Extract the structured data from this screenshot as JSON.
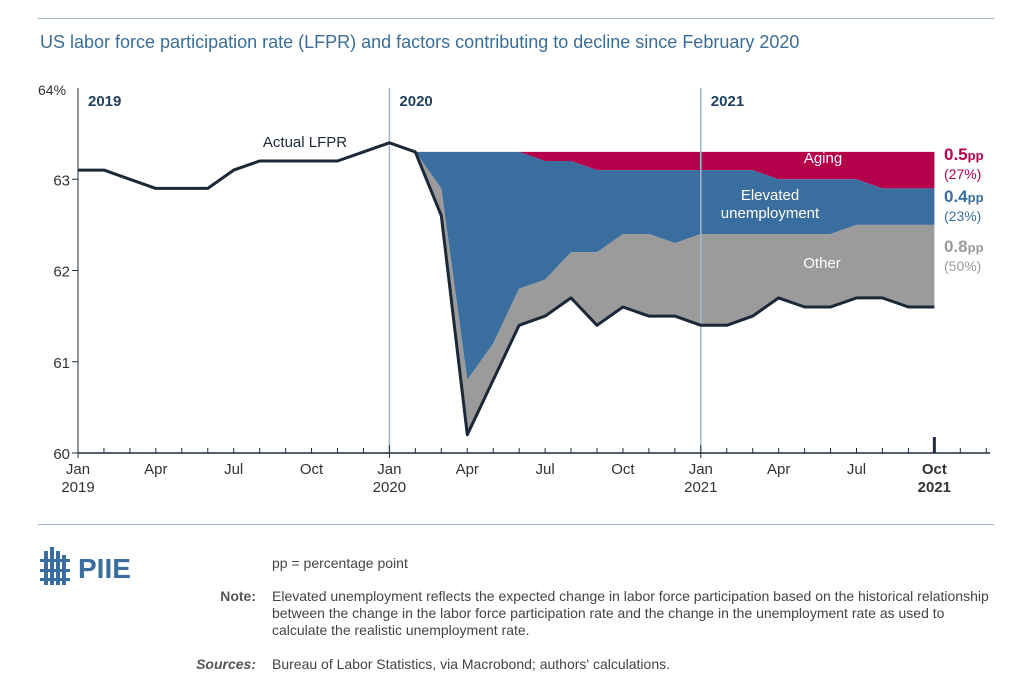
{
  "title": "US labor force participation rate (LFPR) and factors contributing to decline since February 2020",
  "chart_data": {
    "type": "area",
    "y_ticks": [
      60,
      61,
      62,
      63,
      64
    ],
    "y_top_label": "64%",
    "ylim": [
      60,
      64
    ],
    "x_tick_labels": [
      {
        "line1": "Jan",
        "line2": "2019",
        "i": 0,
        "bold": false
      },
      {
        "line1": "Apr",
        "line2": "",
        "i": 3,
        "bold": false
      },
      {
        "line1": "Jul",
        "line2": "",
        "i": 6,
        "bold": false
      },
      {
        "line1": "Oct",
        "line2": "",
        "i": 9,
        "bold": false
      },
      {
        "line1": "Jan",
        "line2": "2020",
        "i": 12,
        "bold": false
      },
      {
        "line1": "Apr",
        "line2": "",
        "i": 15,
        "bold": false
      },
      {
        "line1": "Jul",
        "line2": "",
        "i": 18,
        "bold": false
      },
      {
        "line1": "Oct",
        "line2": "",
        "i": 21,
        "bold": false
      },
      {
        "line1": "Jan",
        "line2": "2021",
        "i": 24,
        "bold": false
      },
      {
        "line1": "Apr",
        "line2": "",
        "i": 27,
        "bold": false
      },
      {
        "line1": "Jul",
        "line2": "",
        "i": 30,
        "bold": false
      },
      {
        "line1": "Oct",
        "line2": "2021",
        "i": 33,
        "bold": true
      }
    ],
    "year_labels": [
      {
        "label": "2019",
        "i": 0
      },
      {
        "label": "2020",
        "i": 12
      },
      {
        "label": "2021",
        "i": 24
      }
    ],
    "actual_lfpr": [
      63.1,
      63.1,
      63.0,
      62.9,
      62.9,
      62.9,
      63.1,
      63.2,
      63.2,
      63.2,
      63.2,
      63.3,
      63.4,
      63.3,
      62.6,
      60.2,
      60.8,
      61.4,
      61.5,
      61.7,
      61.4,
      61.6,
      61.5,
      61.5,
      61.4,
      61.4,
      61.5,
      61.7,
      61.6,
      61.6,
      61.7,
      61.7,
      61.6,
      61.6
    ],
    "series": [
      {
        "name": "Aging",
        "color": "#b5004c",
        "start_index": 13,
        "values": [
          63.3,
          63.3,
          63.3,
          63.3,
          63.3,
          63.3,
          63.3,
          63.3,
          63.3,
          63.3,
          63.3,
          63.3,
          63.3,
          63.3,
          63.3,
          63.3,
          63.3,
          63.3,
          63.3,
          63.3,
          63.3
        ]
      },
      {
        "name": "Elevated unemployment",
        "color": "#3a6e9e",
        "start_index": 13,
        "values": [
          63.3,
          63.3,
          63.3,
          63.3,
          63.3,
          63.2,
          63.2,
          63.1,
          63.1,
          63.1,
          63.1,
          63.1,
          63.1,
          63.1,
          63.0,
          63.0,
          63.0,
          63.0,
          62.9,
          62.9,
          62.9
        ]
      },
      {
        "name": "Other",
        "color": "#9b9b9b",
        "start_index": 13,
        "values": [
          63.3,
          62.9,
          60.8,
          61.2,
          61.8,
          61.9,
          62.2,
          62.2,
          62.4,
          62.4,
          62.3,
          62.4,
          62.4,
          62.4,
          62.4,
          62.4,
          62.4,
          62.5,
          62.5,
          62.5,
          62.5
        ]
      }
    ],
    "series_labels": [
      {
        "key": "aging",
        "text": "Aging"
      },
      {
        "key": "unemp1",
        "text": "Elevated"
      },
      {
        "key": "unemp2",
        "text": "unemployment"
      },
      {
        "key": "other",
        "text": "Other"
      },
      {
        "key": "actual",
        "text": "Actual LFPR"
      }
    ],
    "right_labels": [
      {
        "value": "0.5",
        "unit": "pp",
        "pct": "(27%)",
        "color": "#b5004c"
      },
      {
        "value": "0.4",
        "unit": "pp",
        "pct": "(23%)",
        "color": "#3a6e9e"
      },
      {
        "value": "0.8",
        "unit": "pp",
        "pct": "(50%)",
        "color": "#9b9b9b"
      }
    ]
  },
  "footer": {
    "logo_text": "PIIE",
    "pp_note": "pp = percentage point",
    "note_label": "Note:",
    "note_text": "Elevated unemployment reflects the expected change in labor force participation based on the historical relationship between the change in the labor force participation rate and the change in the unemployment rate as used to calculate the realistic unemployment rate.",
    "sources_label": "Sources:",
    "sources_text": "Bureau of Labor Statistics, via Macrobond; authors' calculations."
  },
  "colors": {
    "title": "#3a6e98",
    "axis": "#1f2d3d",
    "line": "#1b2838",
    "divider": "#9fb2c6"
  }
}
